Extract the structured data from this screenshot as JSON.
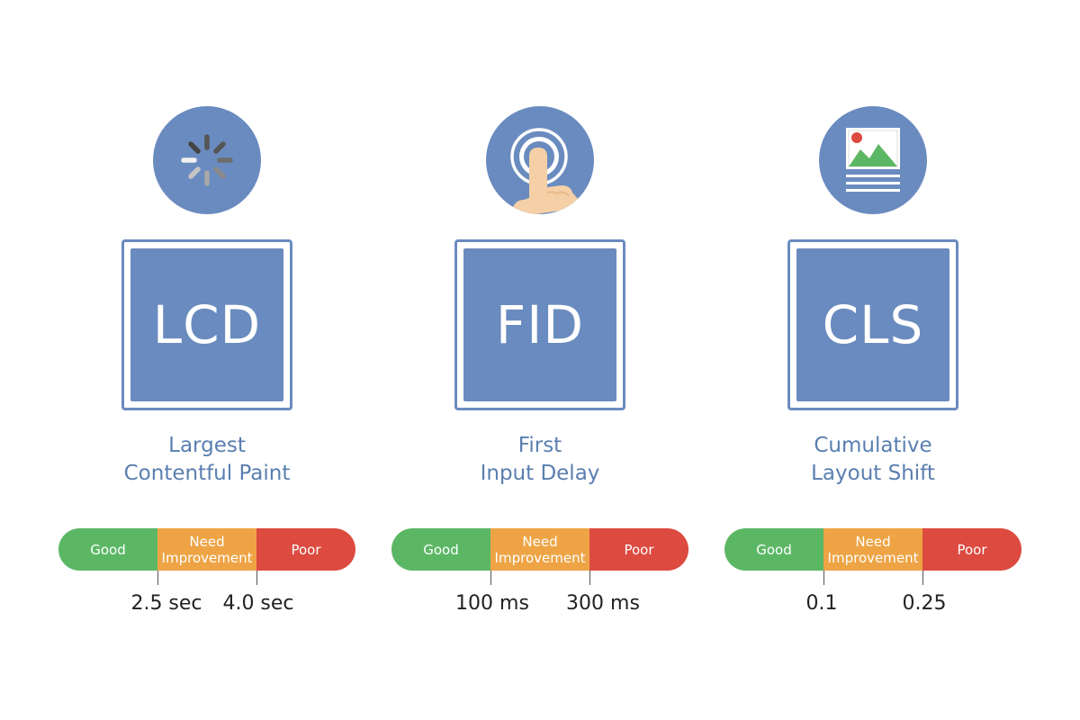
{
  "colors": {
    "accent_blue": "#6a8bbf",
    "label_blue": "#5a7fb0",
    "good": "#5cb765",
    "need_improvement": "#eea445",
    "poor": "#dd4a40"
  },
  "metrics": [
    {
      "abbr": "LCD",
      "name_line1": "Largest",
      "name_line2": "Contentful Paint",
      "icon": "loading-spinner-icon",
      "good_label": "Good",
      "mid_label_line1": "Need",
      "mid_label_line2": "Improvement",
      "poor_label": "Poor",
      "threshold_1": "2.5 sec",
      "threshold_2": "4.0 sec"
    },
    {
      "abbr": "FID",
      "name_line1": "First",
      "name_line2": "Input Delay",
      "icon": "finger-tap-icon",
      "good_label": "Good",
      "mid_label_line1": "Need",
      "mid_label_line2": "Improvement",
      "poor_label": "Poor",
      "threshold_1": "100 ms",
      "threshold_2": "300 ms"
    },
    {
      "abbr": "CLS",
      "name_line1": "Cumulative",
      "name_line2": "Layout Shift",
      "icon": "image-layout-icon",
      "good_label": "Good",
      "mid_label_line1": "Need",
      "mid_label_line2": "Improvement",
      "poor_label": "Poor",
      "threshold_1": "0.1",
      "threshold_2": "0.25"
    }
  ]
}
